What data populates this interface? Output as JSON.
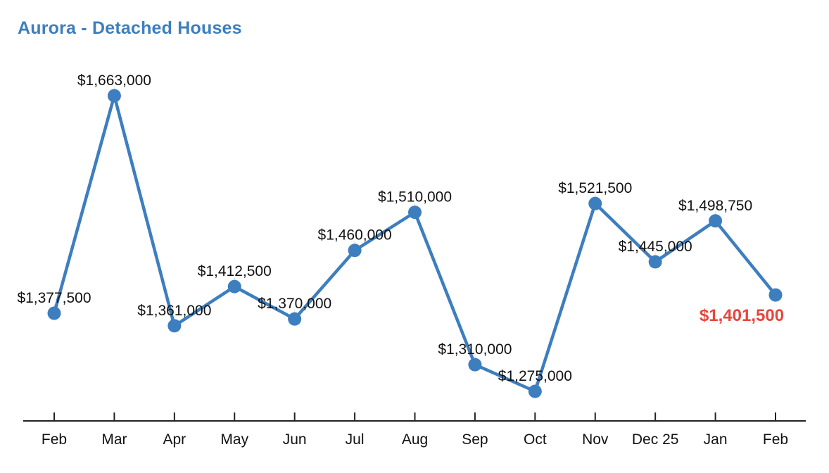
{
  "page": {
    "title": "Aurora - Detached Houses"
  },
  "chart_data": {
    "type": "line",
    "title": "Aurora - Detached Houses",
    "title_color": "#3d7ebf",
    "categories": [
      "Feb",
      "Mar",
      "Apr",
      "May",
      "Jun",
      "Jul",
      "Aug",
      "Sep",
      "Oct",
      "Nov",
      "Dec 25",
      "Jan",
      "Feb"
    ],
    "values": [
      1377500,
      1663000,
      1361000,
      1412500,
      1370000,
      1460000,
      1510000,
      1310000,
      1275000,
      1521500,
      1445000,
      1498750,
      1401500
    ],
    "point_labels": [
      "$1,377,500",
      "$1,663,000",
      "$1,361,000",
      "$1,412,500",
      "$1,370,000",
      "$1,460,000",
      "$1,510,000",
      "$1,310,000",
      "$1,275,000",
      "$1,521,500",
      "$1,445,000",
      "$1,498,750",
      "$1,401,500"
    ],
    "highlight_index": 12,
    "highlight_label": "$1,401,500",
    "highlight_label_color": "#e8453c",
    "line_color": "#3d7ebf",
    "point_color": "#3d7ebf",
    "label_color": "#111111",
    "axis_color": "#222222",
    "tick_label_color": "#111111",
    "ylim": [
      1275000,
      1663000
    ],
    "grid": false,
    "legend": false,
    "xlabel": "",
    "ylabel": ""
  }
}
